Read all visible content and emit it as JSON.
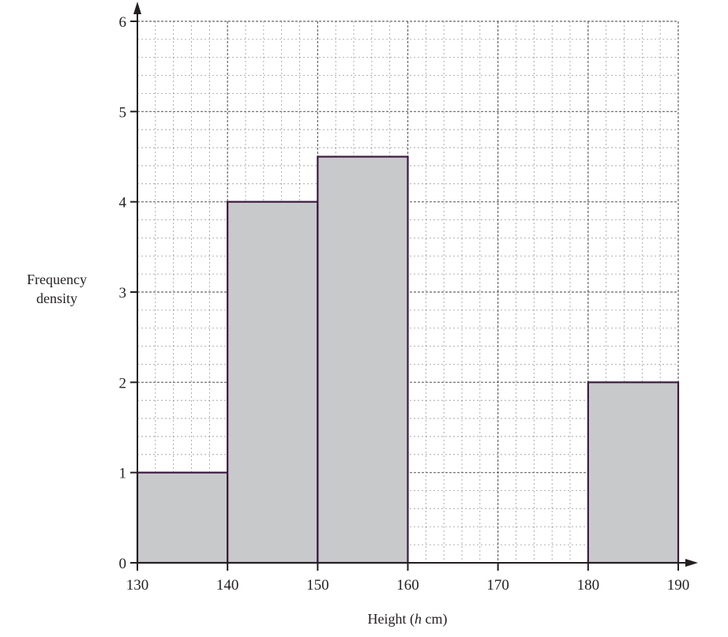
{
  "chart_data": {
    "type": "bar",
    "subtype": "histogram",
    "title": "",
    "xlabel": "Height (h cm)",
    "xlabel_parts": {
      "prefix": "Height (",
      "italic": "h",
      "suffix": " cm)"
    },
    "ylabel": "Frequency density",
    "ylabel_lines": [
      "Frequency",
      "density"
    ],
    "xlim": [
      130,
      190
    ],
    "ylim": [
      0,
      6
    ],
    "x_ticks": [
      130,
      140,
      150,
      160,
      170,
      180,
      190
    ],
    "y_ticks": [
      0,
      1,
      2,
      3,
      4,
      5,
      6
    ],
    "grid": true,
    "grid_minor_x_step": 2,
    "grid_minor_y_step": 0.2,
    "bins": [
      {
        "from": 130,
        "to": 140,
        "frequency_density": 1
      },
      {
        "from": 140,
        "to": 150,
        "frequency_density": 4
      },
      {
        "from": 150,
        "to": 160,
        "frequency_density": 4.5
      },
      {
        "from": 160,
        "to": 170,
        "frequency_density": null
      },
      {
        "from": 170,
        "to": 180,
        "frequency_density": null
      },
      {
        "from": 180,
        "to": 190,
        "frequency_density": 2
      }
    ],
    "categories": [
      "130-140",
      "140-150",
      "150-160",
      "180-190"
    ],
    "values": [
      1,
      4,
      4.5,
      2
    ],
    "colors": {
      "bar_fill": "#c8c9cb",
      "bar_stroke": "#3b1a3e",
      "axis": "#231f20",
      "grid": "#555555"
    }
  }
}
